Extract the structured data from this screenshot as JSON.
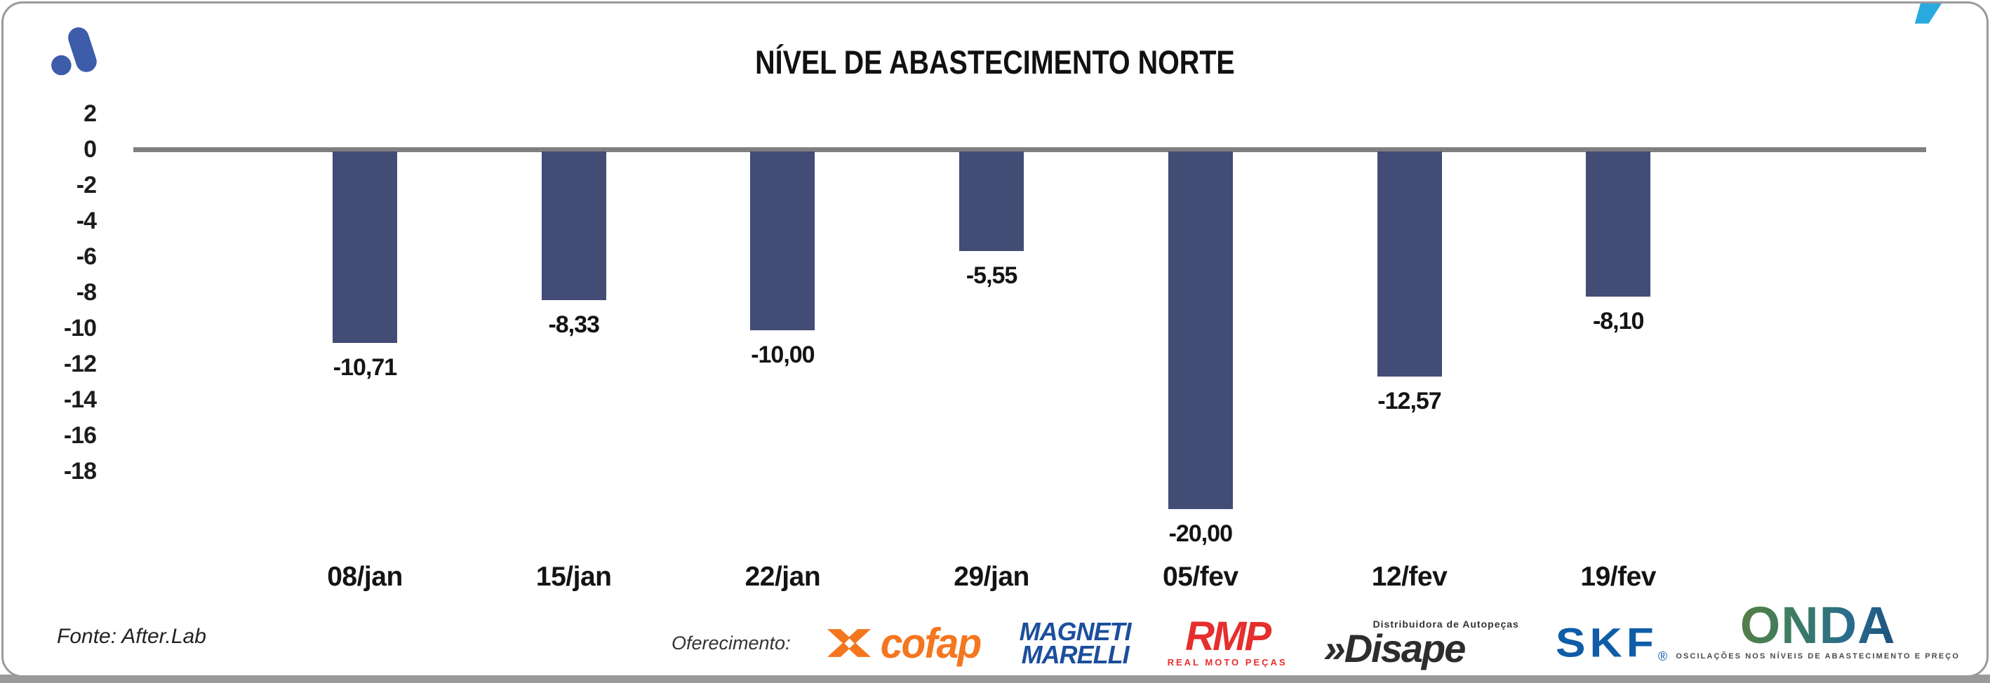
{
  "header": {
    "title": "NÍVEL DE ABASTECIMENTO NORTE"
  },
  "chart_data": {
    "type": "bar",
    "title": "NÍVEL DE ABASTECIMENTO NORTE",
    "categories": [
      "08/jan",
      "15/jan",
      "22/jan",
      "29/jan",
      "05/fev",
      "12/fev",
      "19/fev"
    ],
    "values": [
      -10.71,
      -8.33,
      -10.0,
      -5.55,
      -20.0,
      -12.57,
      -8.1
    ],
    "value_labels": [
      "-10,71",
      "-8,33",
      "-10,00",
      "-5,55",
      "-20,00",
      "-12,57",
      "-8,10"
    ],
    "yticks": [
      2,
      0,
      -2,
      -4,
      -6,
      -8,
      -10,
      -12,
      -14,
      -16,
      -18
    ],
    "ytick_labels": [
      "2",
      "0",
      "-2",
      "-4",
      "-6",
      "-8",
      "-10",
      "-12",
      "-14",
      "-16",
      "-18"
    ],
    "ylim": [
      -21.5,
      2.5
    ],
    "xlabel": "",
    "ylabel": "",
    "grid": false,
    "legend": "none",
    "bar_color": "#424C74",
    "axis_color": "#7f7f7f"
  },
  "icons": {
    "quote_glyph": "’"
  },
  "footer": {
    "source": "Fonte: After.Lab",
    "sponsor_label": "Oferecimento:",
    "sponsors": {
      "cofap": {
        "name": "cofap",
        "color": "#F4761F"
      },
      "magneti_marelli": {
        "line1": "MAGNETI",
        "line2": "MARELLI",
        "color": "#1B4F9C"
      },
      "rmp": {
        "name": "RMP",
        "tagline": "REAL MOTO PEÇAS",
        "color": "#E62E2E"
      },
      "disape": {
        "prefix": "»",
        "name": "Disape",
        "tagline": "Distribuidora de Autopeças",
        "color": "#2D2D2D"
      },
      "skf": {
        "name": "SKF",
        "reg": "®",
        "color": "#0F5DA8"
      }
    }
  },
  "onda": {
    "name": "ONDA",
    "tagline": "OSCILAÇÕES NOS NÍVEIS DE ABASTECIMENTO E PREÇO"
  }
}
